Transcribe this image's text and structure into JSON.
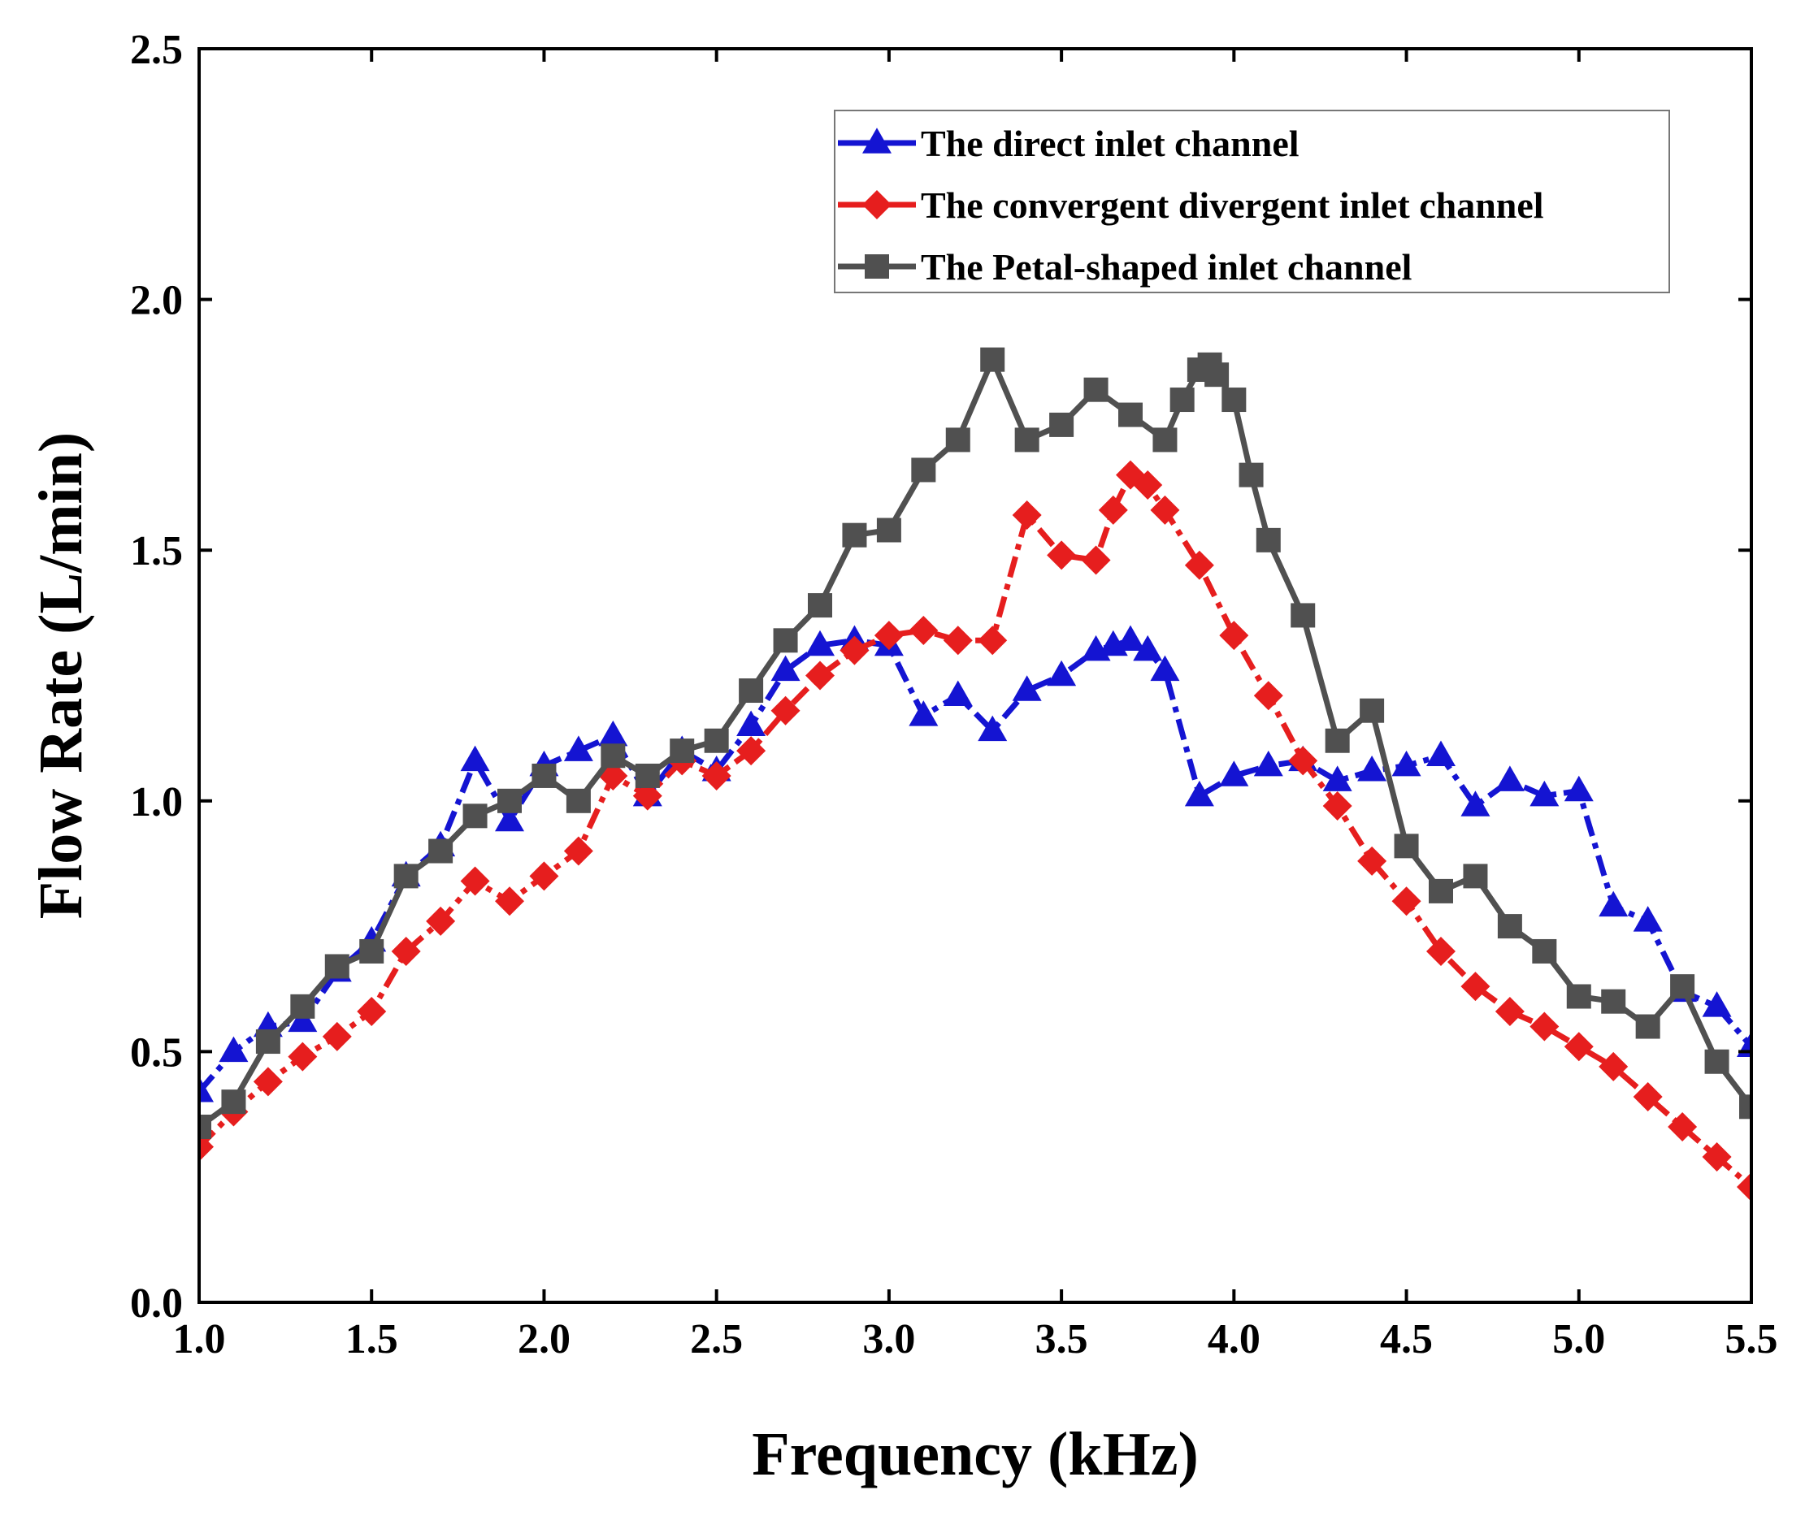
{
  "chart_data": {
    "type": "line",
    "title": "",
    "xlabel": "Frequency (kHz)",
    "ylabel": "Flow Rate (L/min)",
    "xlim": [
      1.0,
      5.5
    ],
    "ylim": [
      0.0,
      2.5
    ],
    "xticks": [
      "1.0",
      "1.5",
      "2.0",
      "2.5",
      "3.0",
      "3.5",
      "4.0",
      "4.5",
      "5.0",
      "5.5"
    ],
    "yticks": [
      "0.0",
      "0.5",
      "1.0",
      "1.5",
      "2.0",
      "2.5"
    ],
    "grid": false,
    "legend_position": "top-right",
    "series": [
      {
        "name": "The direct inlet channel",
        "color": "#1414d2",
        "marker": "triangle",
        "line_style": "dash-dot",
        "points": [
          [
            1.0,
            0.42
          ],
          [
            1.1,
            0.5
          ],
          [
            1.2,
            0.55
          ],
          [
            1.3,
            0.56
          ],
          [
            1.4,
            0.66
          ],
          [
            1.5,
            0.72
          ],
          [
            1.6,
            0.85
          ],
          [
            1.7,
            0.91
          ],
          [
            1.8,
            1.08
          ],
          [
            1.9,
            0.96
          ],
          [
            2.0,
            1.07
          ],
          [
            2.1,
            1.1
          ],
          [
            2.2,
            1.13
          ],
          [
            2.3,
            1.01
          ],
          [
            2.4,
            1.1
          ],
          [
            2.5,
            1.06
          ],
          [
            2.6,
            1.15
          ],
          [
            2.7,
            1.26
          ],
          [
            2.8,
            1.31
          ],
          [
            2.9,
            1.32
          ],
          [
            3.0,
            1.31
          ],
          [
            3.1,
            1.17
          ],
          [
            3.2,
            1.21
          ],
          [
            3.3,
            1.14
          ],
          [
            3.4,
            1.22
          ],
          [
            3.5,
            1.25
          ],
          [
            3.6,
            1.3
          ],
          [
            3.65,
            1.31
          ],
          [
            3.7,
            1.32
          ],
          [
            3.75,
            1.3
          ],
          [
            3.8,
            1.26
          ],
          [
            3.9,
            1.01
          ],
          [
            4.0,
            1.05
          ],
          [
            4.1,
            1.07
          ],
          [
            4.2,
            1.08
          ],
          [
            4.3,
            1.04
          ],
          [
            4.4,
            1.06
          ],
          [
            4.5,
            1.07
          ],
          [
            4.6,
            1.09
          ],
          [
            4.7,
            0.99
          ],
          [
            4.8,
            1.04
          ],
          [
            4.9,
            1.01
          ],
          [
            5.0,
            1.02
          ],
          [
            5.1,
            0.79
          ],
          [
            5.2,
            0.76
          ],
          [
            5.3,
            0.62
          ],
          [
            5.4,
            0.59
          ],
          [
            5.5,
            0.51
          ]
        ]
      },
      {
        "name": "The convergent divergent inlet channel",
        "color": "#e61e1e",
        "marker": "diamond",
        "line_style": "dash-dot",
        "points": [
          [
            1.0,
            0.31
          ],
          [
            1.1,
            0.38
          ],
          [
            1.2,
            0.44
          ],
          [
            1.3,
            0.49
          ],
          [
            1.4,
            0.53
          ],
          [
            1.5,
            0.58
          ],
          [
            1.6,
            0.7
          ],
          [
            1.7,
            0.76
          ],
          [
            1.8,
            0.84
          ],
          [
            1.9,
            0.8
          ],
          [
            2.0,
            0.85
          ],
          [
            2.1,
            0.9
          ],
          [
            2.2,
            1.05
          ],
          [
            2.3,
            1.01
          ],
          [
            2.4,
            1.08
          ],
          [
            2.5,
            1.05
          ],
          [
            2.6,
            1.1
          ],
          [
            2.7,
            1.18
          ],
          [
            2.8,
            1.25
          ],
          [
            2.9,
            1.3
          ],
          [
            3.0,
            1.33
          ],
          [
            3.1,
            1.34
          ],
          [
            3.2,
            1.32
          ],
          [
            3.3,
            1.32
          ],
          [
            3.4,
            1.57
          ],
          [
            3.5,
            1.49
          ],
          [
            3.6,
            1.48
          ],
          [
            3.65,
            1.58
          ],
          [
            3.7,
            1.65
          ],
          [
            3.75,
            1.63
          ],
          [
            3.8,
            1.58
          ],
          [
            3.9,
            1.47
          ],
          [
            4.0,
            1.33
          ],
          [
            4.1,
            1.21
          ],
          [
            4.2,
            1.08
          ],
          [
            4.3,
            0.99
          ],
          [
            4.4,
            0.88
          ],
          [
            4.5,
            0.8
          ],
          [
            4.6,
            0.7
          ],
          [
            4.7,
            0.63
          ],
          [
            4.8,
            0.58
          ],
          [
            4.9,
            0.55
          ],
          [
            5.0,
            0.51
          ],
          [
            5.1,
            0.47
          ],
          [
            5.2,
            0.41
          ],
          [
            5.3,
            0.35
          ],
          [
            5.4,
            0.29
          ],
          [
            5.5,
            0.23
          ]
        ]
      },
      {
        "name": "The Petal-shaped inlet channel",
        "color": "#505050",
        "marker": "square",
        "line_style": "solid",
        "points": [
          [
            1.0,
            0.35
          ],
          [
            1.1,
            0.4
          ],
          [
            1.2,
            0.52
          ],
          [
            1.3,
            0.59
          ],
          [
            1.4,
            0.67
          ],
          [
            1.5,
            0.7
          ],
          [
            1.6,
            0.85
          ],
          [
            1.7,
            0.9
          ],
          [
            1.8,
            0.97
          ],
          [
            1.9,
            1.0
          ],
          [
            2.0,
            1.05
          ],
          [
            2.1,
            1.0
          ],
          [
            2.2,
            1.09
          ],
          [
            2.3,
            1.05
          ],
          [
            2.4,
            1.1
          ],
          [
            2.5,
            1.12
          ],
          [
            2.6,
            1.22
          ],
          [
            2.7,
            1.32
          ],
          [
            2.8,
            1.39
          ],
          [
            2.9,
            1.53
          ],
          [
            3.0,
            1.54
          ],
          [
            3.1,
            1.66
          ],
          [
            3.2,
            1.72
          ],
          [
            3.3,
            1.88
          ],
          [
            3.4,
            1.72
          ],
          [
            3.5,
            1.75
          ],
          [
            3.6,
            1.82
          ],
          [
            3.7,
            1.77
          ],
          [
            3.8,
            1.72
          ],
          [
            3.85,
            1.8
          ],
          [
            3.9,
            1.86
          ],
          [
            3.93,
            1.87
          ],
          [
            3.95,
            1.85
          ],
          [
            4.0,
            1.8
          ],
          [
            4.05,
            1.65
          ],
          [
            4.1,
            1.52
          ],
          [
            4.2,
            1.37
          ],
          [
            4.3,
            1.12
          ],
          [
            4.4,
            1.18
          ],
          [
            4.5,
            0.91
          ],
          [
            4.6,
            0.82
          ],
          [
            4.7,
            0.85
          ],
          [
            4.8,
            0.75
          ],
          [
            4.9,
            0.7
          ],
          [
            5.0,
            0.61
          ],
          [
            5.1,
            0.6
          ],
          [
            5.2,
            0.55
          ],
          [
            5.3,
            0.63
          ],
          [
            5.4,
            0.48
          ],
          [
            5.5,
            0.39
          ]
        ]
      }
    ]
  }
}
